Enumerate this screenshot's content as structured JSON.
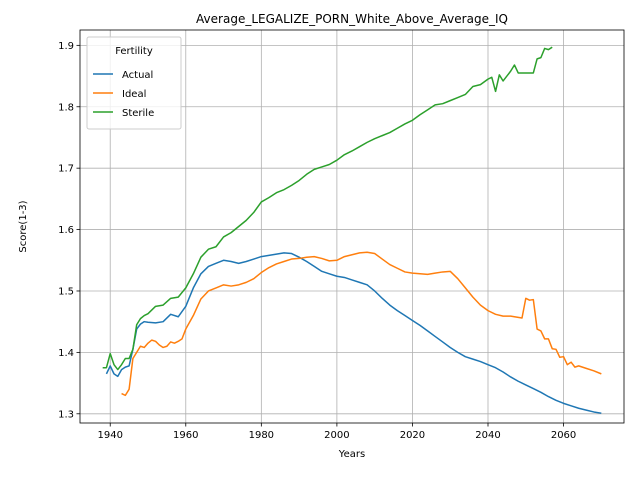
{
  "chart_data": {
    "type": "line",
    "title": "Average_LEGALIZE_PORN_White_Above_Average_IQ",
    "xlabel": "Years",
    "ylabel": "Score(1-3)",
    "xlim": [
      1932,
      2076
    ],
    "ylim": [
      1.285,
      1.925
    ],
    "xticks": [
      1940,
      1960,
      1980,
      2000,
      2020,
      2040,
      2060
    ],
    "yticks": [
      1.3,
      1.4,
      1.5,
      1.6,
      1.7,
      1.8,
      1.9
    ],
    "grid": true,
    "legend": {
      "title": "Fertility",
      "placement": "top-left"
    },
    "series": [
      {
        "name": "Actual",
        "color": "#1f77b4",
        "x": [
          1939,
          1940,
          1941,
          1942,
          1943,
          1944,
          1945,
          1946,
          1947,
          1948,
          1949,
          1950,
          1952,
          1954,
          1956,
          1958,
          1960,
          1962,
          1964,
          1966,
          1968,
          1970,
          1972,
          1974,
          1976,
          1978,
          1980,
          1982,
          1984,
          1986,
          1988,
          1990,
          1992,
          1994,
          1996,
          1998,
          2000,
          2002,
          2004,
          2006,
          2008,
          2010,
          2012,
          2014,
          2016,
          2018,
          2020,
          2022,
          2024,
          2026,
          2028,
          2030,
          2032,
          2034,
          2036,
          2038,
          2040,
          2042,
          2044,
          2046,
          2048,
          2050,
          2052,
          2054,
          2056,
          2058,
          2060,
          2062,
          2064,
          2066,
          2068,
          2070
        ],
        "values": [
          1.365,
          1.378,
          1.365,
          1.361,
          1.372,
          1.376,
          1.378,
          1.405,
          1.438,
          1.446,
          1.45,
          1.449,
          1.448,
          1.45,
          1.462,
          1.458,
          1.475,
          1.505,
          1.528,
          1.54,
          1.545,
          1.55,
          1.548,
          1.545,
          1.548,
          1.552,
          1.556,
          1.558,
          1.56,
          1.562,
          1.561,
          1.555,
          1.548,
          1.54,
          1.532,
          1.528,
          1.524,
          1.522,
          1.518,
          1.514,
          1.51,
          1.5,
          1.488,
          1.477,
          1.468,
          1.46,
          1.452,
          1.444,
          1.435,
          1.426,
          1.417,
          1.408,
          1.4,
          1.393,
          1.389,
          1.385,
          1.38,
          1.375,
          1.368,
          1.36,
          1.353,
          1.347,
          1.341,
          1.335,
          1.328,
          1.322,
          1.317,
          1.313,
          1.309,
          1.306,
          1.303,
          1.301
        ]
      },
      {
        "name": "Ideal",
        "color": "#ff7f0e",
        "x": [
          1943,
          1944,
          1945,
          1946,
          1947,
          1948,
          1949,
          1950,
          1951,
          1952,
          1953,
          1954,
          1955,
          1956,
          1957,
          1958,
          1959,
          1960,
          1962,
          1964,
          1966,
          1968,
          1970,
          1972,
          1974,
          1976,
          1978,
          1980,
          1982,
          1984,
          1986,
          1988,
          1990,
          1992,
          1994,
          1996,
          1998,
          2000,
          2002,
          2004,
          2006,
          2008,
          2010,
          2012,
          2014,
          2016,
          2018,
          2020,
          2022,
          2024,
          2026,
          2028,
          2030,
          2032,
          2034,
          2036,
          2038,
          2040,
          2042,
          2044,
          2046,
          2048,
          2049,
          2050,
          2051,
          2052,
          2053,
          2054,
          2055,
          2056,
          2057,
          2058,
          2059,
          2060,
          2061,
          2062,
          2063,
          2064,
          2066,
          2068,
          2070
        ],
        "values": [
          1.333,
          1.33,
          1.34,
          1.39,
          1.4,
          1.41,
          1.408,
          1.415,
          1.42,
          1.418,
          1.412,
          1.408,
          1.41,
          1.417,
          1.415,
          1.418,
          1.422,
          1.438,
          1.46,
          1.487,
          1.5,
          1.505,
          1.51,
          1.508,
          1.51,
          1.514,
          1.52,
          1.53,
          1.538,
          1.544,
          1.548,
          1.552,
          1.553,
          1.555,
          1.556,
          1.553,
          1.549,
          1.55,
          1.556,
          1.559,
          1.562,
          1.563,
          1.561,
          1.552,
          1.543,
          1.537,
          1.531,
          1.529,
          1.528,
          1.527,
          1.529,
          1.531,
          1.532,
          1.52,
          1.505,
          1.49,
          1.477,
          1.468,
          1.462,
          1.459,
          1.459,
          1.457,
          1.456,
          1.488,
          1.485,
          1.486,
          1.438,
          1.435,
          1.422,
          1.422,
          1.406,
          1.405,
          1.392,
          1.393,
          1.38,
          1.384,
          1.376,
          1.378,
          1.374,
          1.37,
          1.365
        ]
      },
      {
        "name": "Sterile",
        "color": "#2ca02c",
        "x": [
          1938,
          1939,
          1940,
          1941,
          1942,
          1943,
          1944,
          1945,
          1946,
          1947,
          1948,
          1949,
          1950,
          1952,
          1954,
          1956,
          1958,
          1960,
          1962,
          1964,
          1966,
          1968,
          1970,
          1972,
          1974,
          1976,
          1978,
          1980,
          1982,
          1984,
          1986,
          1988,
          1990,
          1992,
          1994,
          1996,
          1998,
          2000,
          2002,
          2004,
          2006,
          2008,
          2010,
          2012,
          2014,
          2016,
          2018,
          2020,
          2022,
          2024,
          2026,
          2028,
          2030,
          2032,
          2034,
          2036,
          2038,
          2040,
          2041,
          2042,
          2043,
          2044,
          2046,
          2047,
          2048,
          2049,
          2050,
          2052,
          2053,
          2054,
          2055,
          2056,
          2057
        ],
        "values": [
          1.375,
          1.375,
          1.398,
          1.38,
          1.372,
          1.38,
          1.39,
          1.39,
          1.405,
          1.445,
          1.455,
          1.46,
          1.463,
          1.475,
          1.477,
          1.488,
          1.49,
          1.505,
          1.528,
          1.555,
          1.568,
          1.572,
          1.588,
          1.595,
          1.605,
          1.615,
          1.628,
          1.645,
          1.652,
          1.66,
          1.665,
          1.672,
          1.68,
          1.69,
          1.698,
          1.702,
          1.706,
          1.713,
          1.722,
          1.728,
          1.735,
          1.742,
          1.748,
          1.753,
          1.758,
          1.765,
          1.772,
          1.778,
          1.787,
          1.795,
          1.803,
          1.805,
          1.81,
          1.815,
          1.82,
          1.833,
          1.836,
          1.845,
          1.848,
          1.825,
          1.852,
          1.842,
          1.858,
          1.868,
          1.855,
          1.855,
          1.855,
          1.855,
          1.878,
          1.88,
          1.895,
          1.893,
          1.897
        ]
      }
    ]
  }
}
